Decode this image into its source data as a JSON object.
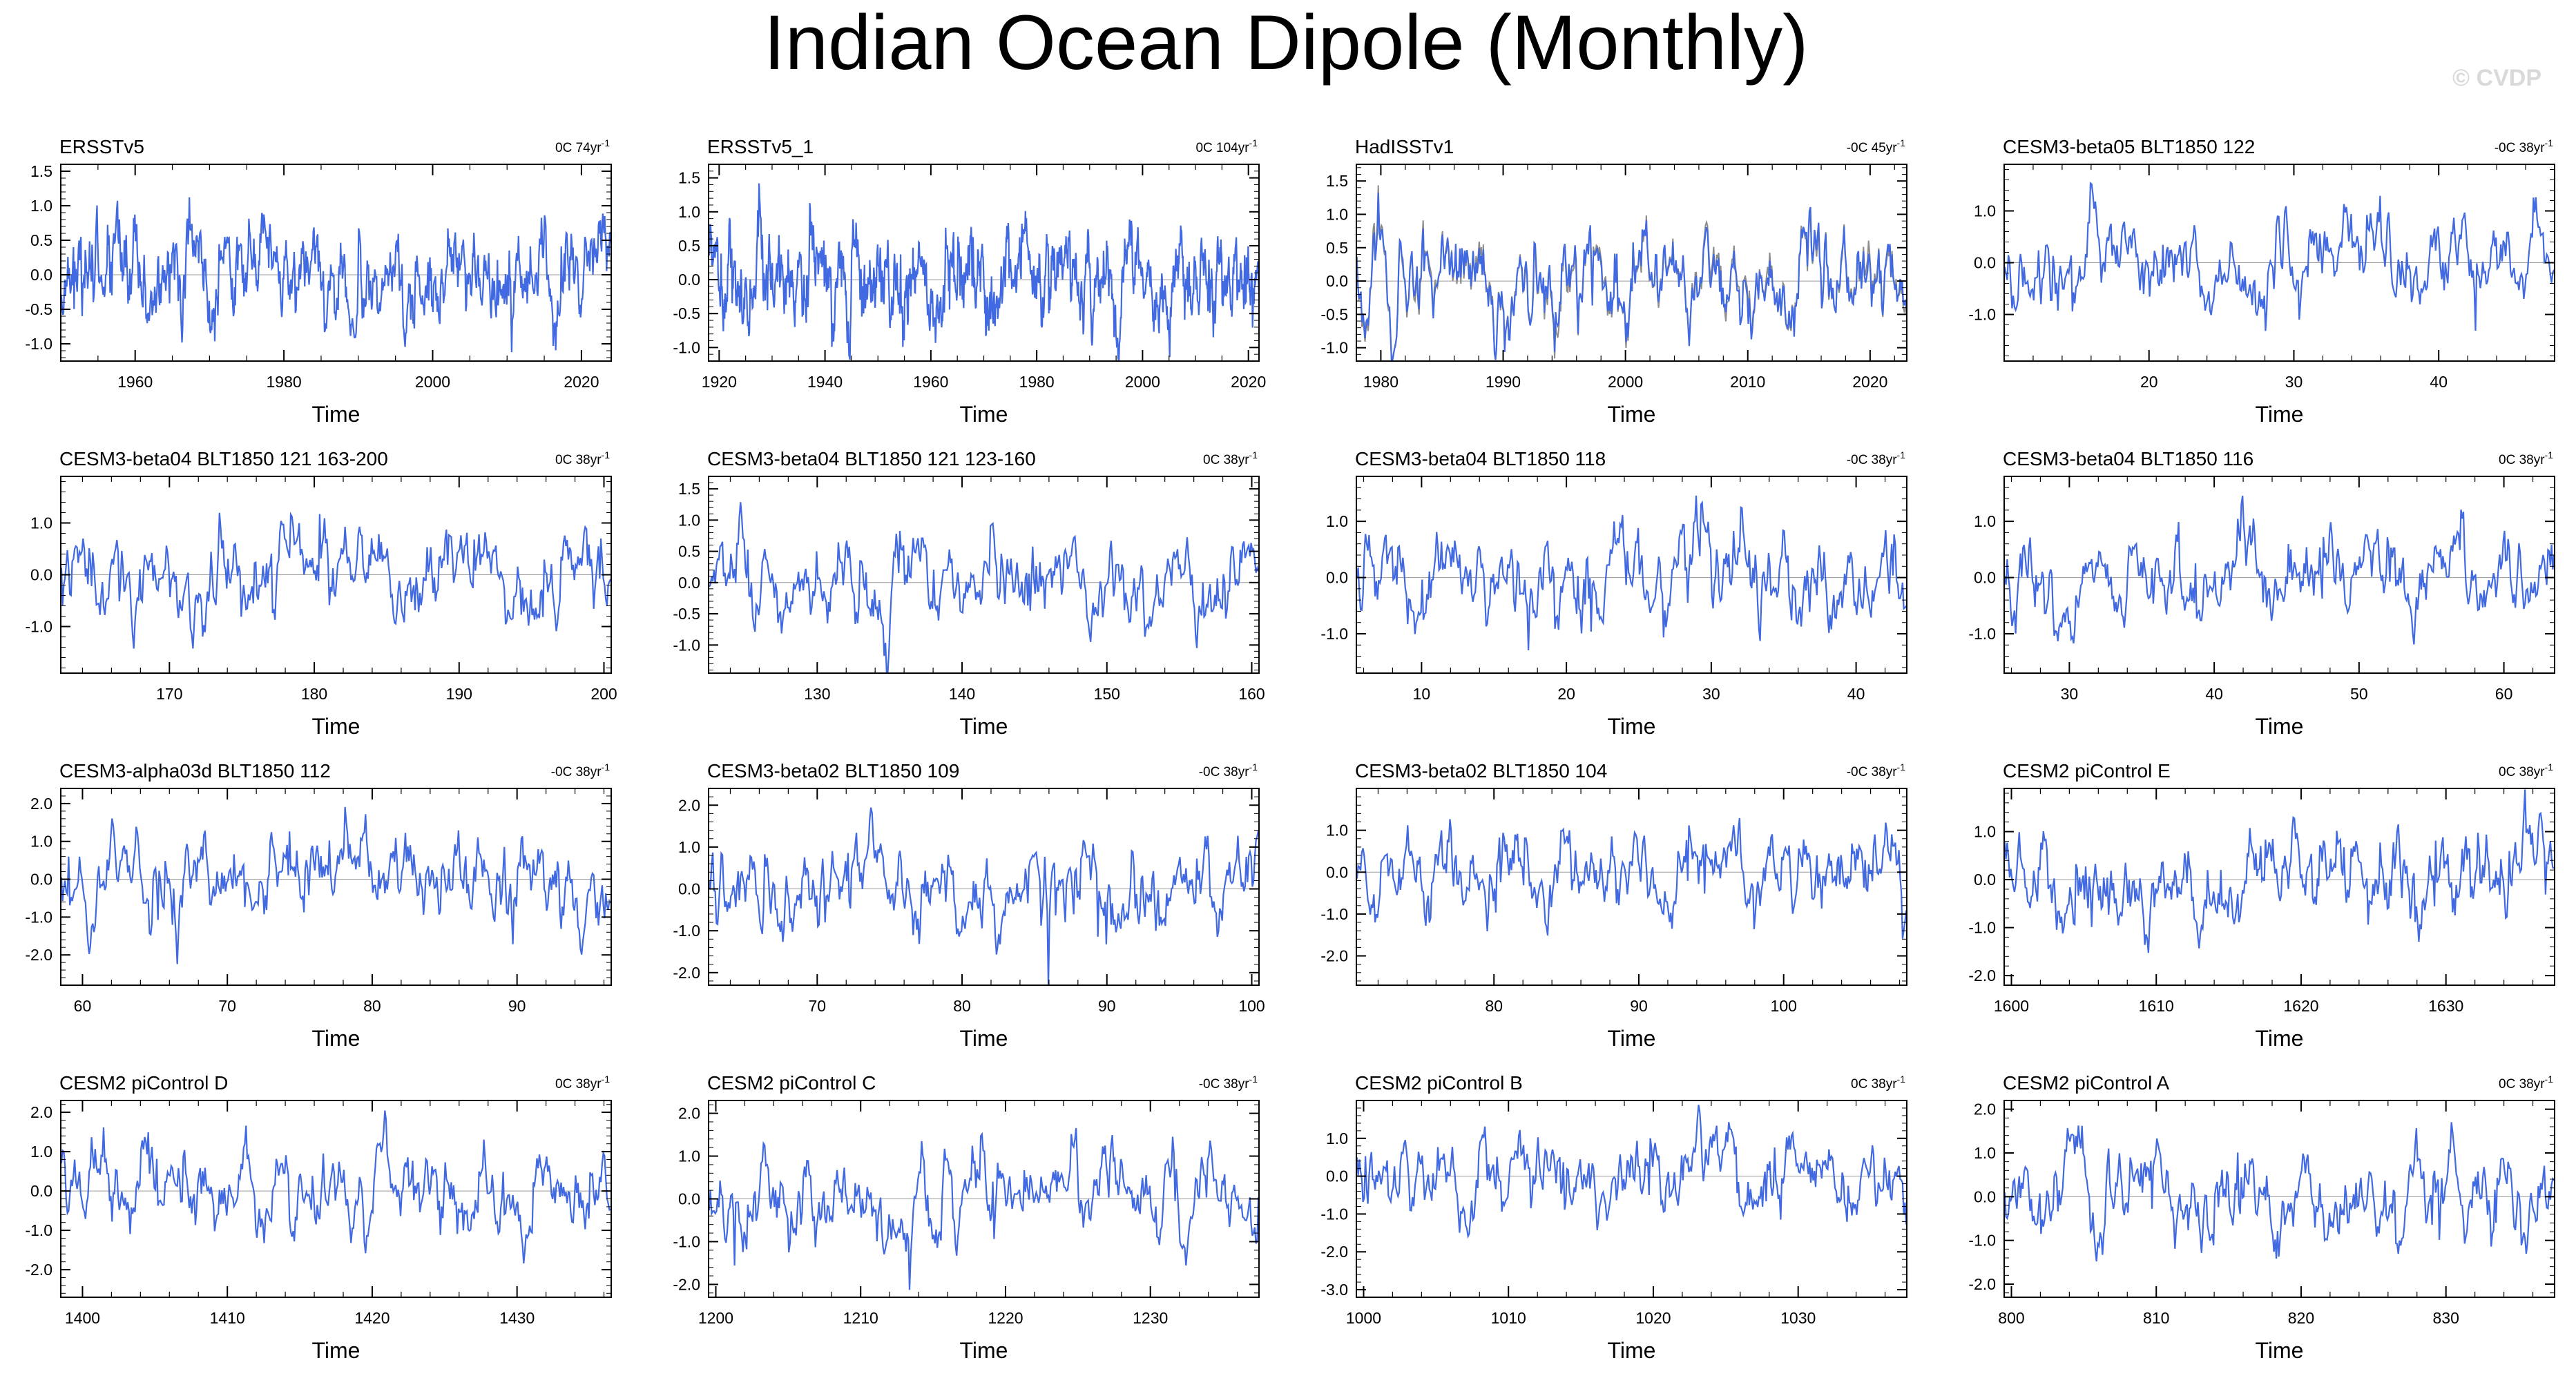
{
  "figure_title": "Indian Ocean Dipole (Monthly)",
  "watermark": "© CVDP",
  "series_color": "#4169e1",
  "obs_overlay_color": "#8c8c8c",
  "chart_data": [
    {
      "type": "line",
      "title": "ERSSTv5",
      "trend": "0C 74yr",
      "trend_exp": "-1",
      "xlabel": "Time",
      "xlim": [
        1950,
        2024
      ],
      "xticks": [
        1960,
        1980,
        2000,
        2020
      ],
      "ylim": [
        -1.25,
        1.6
      ],
      "yticks": [
        1.5,
        1.0,
        0.5,
        0.0,
        -0.5,
        -1.0
      ],
      "ytick_labels": [
        "1.5",
        "1.0",
        "0.5",
        "0.0",
        "-0.5",
        "-1.0"
      ],
      "n_months": 888,
      "seed": 11,
      "amplitude": 0.4
    },
    {
      "type": "line",
      "title": "ERSSTv5_1",
      "trend": "0C 104yr",
      "trend_exp": "-1",
      "xlabel": "Time",
      "xlim": [
        1918,
        2022
      ],
      "xticks": [
        1920,
        1940,
        1960,
        1980,
        2000,
        2020
      ],
      "ylim": [
        -1.2,
        1.7
      ],
      "yticks": [
        1.5,
        1.0,
        0.5,
        0.0,
        -0.5,
        -1.0
      ],
      "ytick_labels": [
        "1.5",
        "1.0",
        "0.5",
        "0.0",
        "-0.5",
        "-1.0"
      ],
      "n_months": 1248,
      "seed": 23,
      "amplitude": 0.4
    },
    {
      "type": "line",
      "title": "HadISSTv1",
      "trend": "-0C 45yr",
      "trend_exp": "-1",
      "xlabel": "Time",
      "xlim": [
        1978,
        2023
      ],
      "xticks": [
        1980,
        1990,
        2000,
        2010,
        2020
      ],
      "ylim": [
        -1.2,
        1.75
      ],
      "yticks": [
        1.5,
        1.0,
        0.5,
        0.0,
        -0.5,
        -1.0
      ],
      "ytick_labels": [
        "1.5",
        "1.0",
        "0.5",
        "0.0",
        "-0.5",
        "-1.0"
      ],
      "n_months": 540,
      "seed": 37,
      "amplitude": 0.42,
      "overlay": true
    },
    {
      "type": "line",
      "title": "CESM3-beta05 BLT1850 122",
      "trend": "-0C 38yr",
      "trend_exp": "-1",
      "xlabel": "Time",
      "xlim": [
        10,
        48
      ],
      "xticks": [
        20,
        30,
        40
      ],
      "ylim": [
        -1.9,
        1.9
      ],
      "yticks": [
        1.0,
        0.0,
        -1.0
      ],
      "ytick_labels": [
        "1.0",
        "0.0",
        "-1.0"
      ],
      "n_months": 456,
      "seed": 41,
      "amplitude": 0.5
    },
    {
      "type": "line",
      "title": "CESM3-beta04 BLT1850 121 163-200",
      "trend": "0C 38yr",
      "trend_exp": "-1",
      "xlabel": "Time",
      "xlim": [
        162.5,
        200.5
      ],
      "xticks": [
        170,
        180,
        190,
        200
      ],
      "ylim": [
        -1.9,
        1.9
      ],
      "yticks": [
        1.0,
        0.0,
        -1.0
      ],
      "ytick_labels": [
        "1.0",
        "0.0",
        "-1.0"
      ],
      "n_months": 456,
      "seed": 53,
      "amplitude": 0.5
    },
    {
      "type": "line",
      "title": "CESM3-beta04 BLT1850 121 123-160",
      "trend": "0C 38yr",
      "trend_exp": "-1",
      "xlabel": "Time",
      "xlim": [
        122.5,
        160.5
      ],
      "xticks": [
        130,
        140,
        150,
        160
      ],
      "ylim": [
        -1.45,
        1.7
      ],
      "yticks": [
        1.5,
        1.0,
        0.5,
        0.0,
        -0.5,
        -1.0
      ],
      "ytick_labels": [
        "1.5",
        "1.0",
        "0.5",
        "0.0",
        "-0.5",
        "-1.0"
      ],
      "n_months": 456,
      "seed": 67,
      "amplitude": 0.42
    },
    {
      "type": "line",
      "title": "CESM3-beta04 BLT1850 118",
      "trend": "-0C 38yr",
      "trend_exp": "-1",
      "xlabel": "Time",
      "xlim": [
        5.5,
        43.5
      ],
      "xticks": [
        10,
        20,
        30,
        40
      ],
      "ylim": [
        -1.7,
        1.8
      ],
      "yticks": [
        1.0,
        0.0,
        -1.0
      ],
      "ytick_labels": [
        "1.0",
        "0.0",
        "-1.0"
      ],
      "n_months": 456,
      "seed": 71,
      "amplitude": 0.48
    },
    {
      "type": "line",
      "title": "CESM3-beta04 BLT1850 116",
      "trend": "0C 38yr",
      "trend_exp": "-1",
      "xlabel": "Time",
      "xlim": [
        25.5,
        63.5
      ],
      "xticks": [
        30,
        40,
        50,
        60
      ],
      "ylim": [
        -1.7,
        1.8
      ],
      "yticks": [
        1.0,
        0.0,
        -1.0
      ],
      "ytick_labels": [
        "1.0",
        "0.0",
        "-1.0"
      ],
      "n_months": 456,
      "seed": 83,
      "amplitude": 0.45
    },
    {
      "type": "line",
      "title": "CESM3-alpha03d BLT1850 112",
      "trend": "-0C 38yr",
      "trend_exp": "-1",
      "xlabel": "Time",
      "xlim": [
        58.5,
        96.5
      ],
      "xticks": [
        60,
        70,
        80,
        90
      ],
      "ylim": [
        -2.8,
        2.4
      ],
      "yticks": [
        2.0,
        1.0,
        0.0,
        -1.0,
        -2.0
      ],
      "ytick_labels": [
        "2.0",
        "1.0",
        "0.0",
        "-1.0",
        "-2.0"
      ],
      "n_months": 456,
      "seed": 97,
      "amplitude": 0.65
    },
    {
      "type": "line",
      "title": "CESM3-beta02 BLT1850 109",
      "trend": "-0C 38yr",
      "trend_exp": "-1",
      "xlabel": "Time",
      "xlim": [
        62.5,
        100.5
      ],
      "xticks": [
        70,
        80,
        90,
        100
      ],
      "ylim": [
        -2.3,
        2.4
      ],
      "yticks": [
        2.0,
        1.0,
        0.0,
        -1.0,
        -2.0
      ],
      "ytick_labels": [
        "2.0",
        "1.0",
        "0.0",
        "-1.0",
        "-2.0"
      ],
      "n_months": 456,
      "seed": 101,
      "amplitude": 0.6
    },
    {
      "type": "line",
      "title": "CESM3-beta02 BLT1850 104",
      "trend": "-0C 38yr",
      "trend_exp": "-1",
      "xlabel": "Time",
      "xlim": [
        70.5,
        108.5
      ],
      "xticks": [
        80,
        90,
        100
      ],
      "ylim": [
        -2.7,
        2.0
      ],
      "yticks": [
        1.0,
        0.0,
        -1.0,
        -2.0
      ],
      "ytick_labels": [
        "1.0",
        "0.0",
        "-1.0",
        "-2.0"
      ],
      "n_months": 456,
      "seed": 113,
      "amplitude": 0.55
    },
    {
      "type": "line",
      "title": "CESM2 piControl E",
      "trend": "0C 38yr",
      "trend_exp": "-1",
      "xlabel": "Time",
      "xlim": [
        1599.5,
        1637.5
      ],
      "xticks": [
        1600,
        1610,
        1620,
        1630
      ],
      "ylim": [
        -2.2,
        1.9
      ],
      "yticks": [
        1.0,
        0.0,
        -1.0,
        -2.0
      ],
      "ytick_labels": [
        "1.0",
        "0.0",
        "-1.0",
        "-2.0"
      ],
      "n_months": 456,
      "seed": 127,
      "amplitude": 0.55
    },
    {
      "type": "line",
      "title": "CESM2 piControl D",
      "trend": "0C 38yr",
      "trend_exp": "-1",
      "xlabel": "Time",
      "xlim": [
        1398.5,
        1436.5
      ],
      "xticks": [
        1400,
        1410,
        1420,
        1430
      ],
      "ylim": [
        -2.7,
        2.3
      ],
      "yticks": [
        2.0,
        1.0,
        0.0,
        -1.0,
        -2.0
      ],
      "ytick_labels": [
        "2.0",
        "1.0",
        "0.0",
        "-1.0",
        "-2.0"
      ],
      "n_months": 456,
      "seed": 131,
      "amplitude": 0.62
    },
    {
      "type": "line",
      "title": "CESM2 piControl C",
      "trend": "-0C 38yr",
      "trend_exp": "-1",
      "xlabel": "Time",
      "xlim": [
        1199.5,
        1237.5
      ],
      "xticks": [
        1200,
        1210,
        1220,
        1230
      ],
      "ylim": [
        -2.3,
        2.3
      ],
      "yticks": [
        2.0,
        1.0,
        0.0,
        -1.0,
        -2.0
      ],
      "ytick_labels": [
        "2.0",
        "1.0",
        "0.0",
        "-1.0",
        "-2.0"
      ],
      "n_months": 456,
      "seed": 149,
      "amplitude": 0.62
    },
    {
      "type": "line",
      "title": "CESM2 piControl B",
      "trend": "0C 38yr",
      "trend_exp": "-1",
      "xlabel": "Time",
      "xlim": [
        999.5,
        1037.5
      ],
      "xticks": [
        1000,
        1010,
        1020,
        1030
      ],
      "ylim": [
        -3.2,
        2.0
      ],
      "yticks": [
        1.0,
        0.0,
        -1.0,
        -2.0,
        -3.0
      ],
      "ytick_labels": [
        "1.0",
        "0.0",
        "-1.0",
        "-2.0",
        "-3.0"
      ],
      "n_months": 456,
      "seed": 157,
      "amplitude": 0.6
    },
    {
      "type": "line",
      "title": "CESM2 piControl A",
      "trend": "0C 38yr",
      "trend_exp": "-1",
      "xlabel": "Time",
      "xlim": [
        799.5,
        837.5
      ],
      "xticks": [
        800,
        810,
        820,
        830
      ],
      "ylim": [
        -2.3,
        2.2
      ],
      "yticks": [
        2.0,
        1.0,
        0.0,
        -1.0,
        -2.0
      ],
      "ytick_labels": [
        "2.0",
        "1.0",
        "0.0",
        "-1.0",
        "-2.0"
      ],
      "n_months": 456,
      "seed": 163,
      "amplitude": 0.62
    }
  ]
}
